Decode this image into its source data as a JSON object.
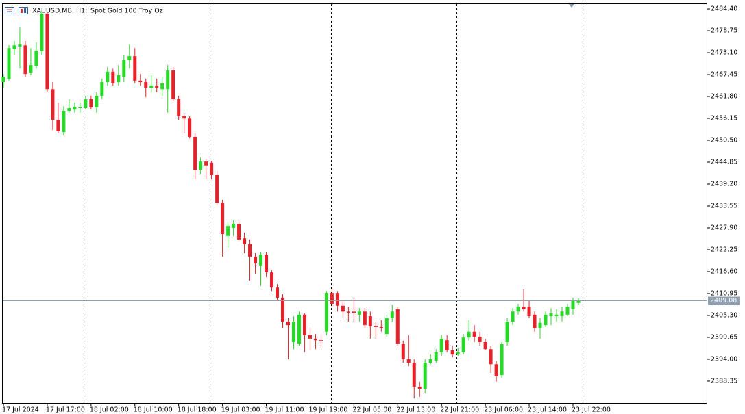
{
  "chart_data": {
    "type": "candlestick",
    "title": "XAUUSD.MB, H1:",
    "subtitle": "Spot Gold 100 Troy Oz",
    "up_color": "#26d926",
    "down_color": "#e8222a",
    "last_price": 2409.08,
    "last_price_color": "#8ea0b0",
    "ylim": [
      2382.51,
      2485.82
    ],
    "yticks": [
      {
        "value": 2484.4,
        "label": "2484.40"
      },
      2478.75,
      {
        "value": 2473.1,
        "label": "2473.10"
      },
      2467.45,
      {
        "value": 2461.8,
        "label": "2461.80"
      },
      2456.15,
      {
        "value": 2450.5,
        "label": "2450.50"
      },
      2444.85,
      {
        "value": 2439.2,
        "label": "2439.20"
      },
      2433.55,
      {
        "value": 2427.9,
        "label": "2427.90"
      },
      2422.25,
      {
        "value": 2416.6,
        "label": "2416.60"
      },
      2410.95,
      {
        "value": 2405.3,
        "label": "2405.30"
      },
      2399.65,
      {
        "value": 2394.0,
        "label": "2394.00"
      },
      2388.35
    ],
    "categories": [
      "17 Jul 2024",
      null,
      null,
      null,
      null,
      null,
      null,
      null,
      "17 Jul 17:00",
      null,
      null,
      null,
      null,
      null,
      null,
      null,
      "18 Jul 02:00",
      null,
      null,
      null,
      null,
      null,
      null,
      null,
      "18 Jul 10:00",
      null,
      null,
      null,
      null,
      null,
      null,
      null,
      "18 Jul 18:00",
      null,
      null,
      null,
      null,
      null,
      null,
      null,
      "19 Jul 03:00",
      null,
      null,
      null,
      null,
      null,
      null,
      null,
      "19 Jul 11:00",
      null,
      null,
      null,
      null,
      null,
      null,
      null,
      "19 Jul 19:00",
      null,
      null,
      null,
      null,
      null,
      null,
      null,
      "22 Jul 05:00",
      null,
      null,
      null,
      null,
      null,
      null,
      null,
      "22 Jul 13:00",
      null,
      null,
      null,
      null,
      null,
      null,
      null,
      "22 Jul 21:00",
      null,
      null,
      null,
      null,
      null,
      null,
      null,
      "23 Jul 06:00",
      null,
      null,
      null,
      null,
      null,
      null,
      null,
      "23 Jul 14:00",
      null,
      null,
      null,
      null,
      null,
      null,
      null,
      "23 Jul 22:00",
      null
    ],
    "open": [
      2465.5,
      2466.4,
      2474.0,
      2474.7,
      2475.0,
      2468.0,
      2469.7,
      2473.5,
      2483.2,
      2463.7,
      2455.8,
      2452.6,
      2458.1,
      2458.4,
      2458.8,
      2458.8,
      2461.1,
      2459.0,
      2462.0,
      2465.5,
      2468.2,
      2465.5,
      2466.9,
      2471.2,
      2472.2,
      2465.9,
      2465.5,
      2464.1,
      2464.6,
      2463.7,
      2463.7,
      2468.5,
      2461.1,
      2456.7,
      2456.1,
      2451.4,
      2442.9,
      2445.0,
      2444.7,
      2441.5,
      2434.4,
      2425.8,
      2427.9,
      2428.9,
      2425.2,
      2423.7,
      2420.5,
      2418.2,
      2421.0,
      2416.4,
      2412.5,
      2409.9,
      2403.7,
      2398.4,
      2398.0,
      2405.5,
      2400.2,
      2399.3,
      2398.9,
      2401.1,
      2411.1,
      2411.1,
      2407.8,
      2406.3,
      2406.3,
      2405.5,
      2406.3,
      2405.1,
      2402.5,
      2402.3,
      2400.5,
      2404.6,
      2406.9,
      2398.0,
      2394.0,
      2393.1,
      2386.9,
      2386.4,
      2393.1,
      2393.6,
      2395.8,
      2398.9,
      2396.3,
      2395.2,
      2395.8,
      2399.6,
      2401.1,
      2399.8,
      2398.4,
      2396.6,
      2392.7,
      2389.9,
      2398.4,
      2403.7,
      2406.3,
      2407.6,
      2407.6,
      2405.5,
      2402.0,
      2402.8,
      2405.1,
      2405.1,
      2405.1,
      2405.5,
      2406.9,
      2408.5
    ],
    "high": [
      2467.6,
      2475.0,
      2476.1,
      2479.6,
      2476.1,
      2474.3,
      2475.8,
      2484.1,
      2483.5,
      2465.5,
      2460.2,
      2459.3,
      2461.1,
      2460.2,
      2460.2,
      2462.0,
      2462.0,
      2462.9,
      2466.4,
      2469.4,
      2469.0,
      2469.9,
      2472.6,
      2475.2,
      2474.3,
      2467.6,
      2466.4,
      2467.3,
      2466.4,
      2466.9,
      2469.9,
      2469.4,
      2462.0,
      2457.6,
      2456.7,
      2452.3,
      2446.1,
      2445.7,
      2445.2,
      2442.5,
      2435.1,
      2429.3,
      2429.8,
      2429.8,
      2426.7,
      2424.9,
      2421.4,
      2421.7,
      2421.7,
      2416.9,
      2413.4,
      2410.8,
      2404.6,
      2405.1,
      2406.3,
      2405.8,
      2402.0,
      2400.5,
      2400.5,
      2411.6,
      2412.2,
      2411.6,
      2409.0,
      2407.6,
      2409.7,
      2407.2,
      2407.2,
      2406.3,
      2403.7,
      2404.1,
      2405.5,
      2408.1,
      2407.6,
      2398.8,
      2400.2,
      2394.0,
      2388.2,
      2394.0,
      2395.2,
      2396.6,
      2400.2,
      2400.2,
      2397.5,
      2397.0,
      2400.5,
      2404.1,
      2402.8,
      2401.1,
      2399.3,
      2397.5,
      2393.5,
      2398.4,
      2404.6,
      2407.2,
      2408.3,
      2412.0,
      2409.0,
      2406.3,
      2404.6,
      2406.3,
      2407.2,
      2406.9,
      2407.6,
      2408.3,
      2409.9,
      2409.7
    ],
    "low": [
      2464.1,
      2465.9,
      2472.6,
      2469.0,
      2466.9,
      2467.3,
      2469.0,
      2472.6,
      2462.9,
      2453.1,
      2452.3,
      2451.7,
      2457.6,
      2457.6,
      2457.6,
      2458.4,
      2458.4,
      2457.6,
      2461.1,
      2464.6,
      2464.6,
      2464.6,
      2465.5,
      2469.0,
      2465.2,
      2464.6,
      2461.6,
      2462.9,
      2462.9,
      2462.0,
      2457.6,
      2460.6,
      2455.8,
      2452.3,
      2451.0,
      2440.4,
      2441.7,
      2440.4,
      2440.4,
      2433.7,
      2420.5,
      2422.8,
      2425.8,
      2424.5,
      2421.4,
      2414.3,
      2416.1,
      2412.9,
      2415.2,
      2411.6,
      2409.0,
      2402.0,
      2394.0,
      2396.6,
      2397.5,
      2395.8,
      2396.3,
      2396.6,
      2397.5,
      2400.2,
      2407.6,
      2406.3,
      2404.6,
      2403.7,
      2403.7,
      2403.7,
      2402.0,
      2399.3,
      2399.3,
      2401.1,
      2399.8,
      2403.7,
      2397.5,
      2393.1,
      2392.2,
      2383.9,
      2384.3,
      2385.2,
      2392.7,
      2393.1,
      2394.9,
      2395.8,
      2394.5,
      2394.9,
      2395.2,
      2398.8,
      2398.4,
      2397.5,
      2396.3,
      2390.5,
      2388.2,
      2389.2,
      2397.5,
      2402.8,
      2405.5,
      2406.3,
      2404.6,
      2401.1,
      2399.3,
      2402.3,
      2402.8,
      2403.7,
      2403.7,
      2405.1,
      2405.5,
      2408.0
    ],
    "close": [
      2466.9,
      2474.3,
      2475.0,
      2475.2,
      2467.6,
      2469.9,
      2473.6,
      2483.2,
      2463.7,
      2455.8,
      2452.8,
      2458.1,
      2458.8,
      2459.1,
      2459.0,
      2461.1,
      2459.0,
      2462.0,
      2465.5,
      2468.2,
      2465.2,
      2467.3,
      2471.2,
      2472.2,
      2465.9,
      2465.5,
      2464.1,
      2464.6,
      2464.1,
      2465.2,
      2468.5,
      2461.1,
      2456.7,
      2456.1,
      2451.4,
      2442.9,
      2445.0,
      2444.0,
      2441.5,
      2434.4,
      2426.3,
      2428.4,
      2428.9,
      2424.9,
      2423.7,
      2420.5,
      2418.7,
      2421.0,
      2416.4,
      2412.5,
      2409.9,
      2403.7,
      2402.8,
      2403.7,
      2405.5,
      2400.2,
      2399.3,
      2398.9,
      2398.8,
      2411.1,
      2408.3,
      2407.8,
      2406.3,
      2406.0,
      2406.0,
      2406.3,
      2402.8,
      2402.5,
      2402.3,
      2402.0,
      2404.6,
      2406.3,
      2398.0,
      2394.0,
      2393.1,
      2386.9,
      2386.4,
      2393.1,
      2394.0,
      2395.8,
      2399.3,
      2396.3,
      2395.2,
      2395.8,
      2399.6,
      2401.1,
      2399.8,
      2398.4,
      2396.6,
      2392.7,
      2389.6,
      2397.9,
      2403.7,
      2406.3,
      2407.6,
      2406.9,
      2405.1,
      2402.0,
      2403.4,
      2405.5,
      2405.8,
      2405.5,
      2406.3,
      2407.6,
      2409.0,
      2409.08
    ]
  }
}
